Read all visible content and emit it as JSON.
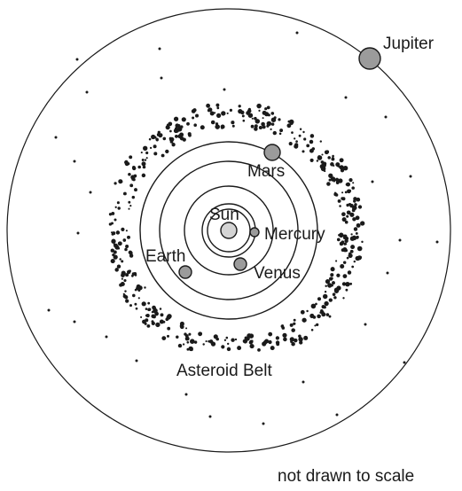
{
  "bodies": {
    "sun": "Sun",
    "mercury": "Mercury",
    "venus": "Venus",
    "earth": "Earth",
    "mars": "Mars",
    "jupiter": "Jupiter"
  },
  "asteroid_belt_label": "Asteroid Belt",
  "note": "not drawn to scale",
  "colors": {
    "line": "#1a1a1a",
    "planet_fill": "#9b9b9b",
    "sun_fill": "#d4d4d4",
    "background": "#ffffff"
  }
}
